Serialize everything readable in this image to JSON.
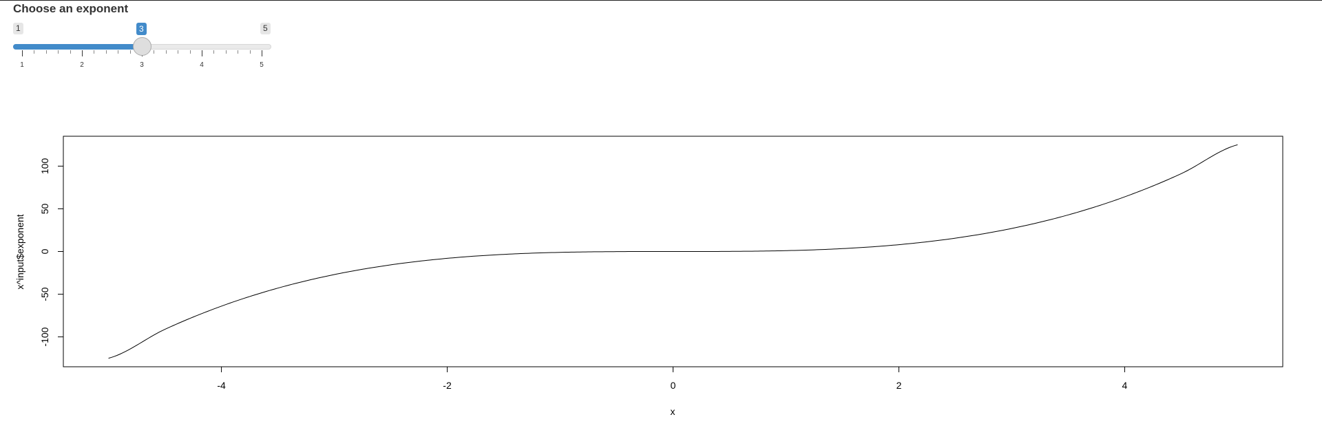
{
  "slider": {
    "label": "Choose an exponent",
    "min": 1,
    "max": 5,
    "value": 3,
    "min_label": "1",
    "max_label": "5",
    "value_label": "3",
    "tick_labels": [
      "1",
      "2",
      "3",
      "4",
      "5"
    ],
    "accent_color": "#428bca"
  },
  "chart_data": {
    "type": "line",
    "title": "",
    "xlabel": "x",
    "ylabel": "x^input$exponent",
    "xlim": [
      -5.4,
      5.4
    ],
    "ylim": [
      -135,
      135
    ],
    "xticks": [
      -4,
      -2,
      0,
      2,
      4
    ],
    "xtick_labels": [
      "-4",
      "-2",
      "0",
      "2",
      "4"
    ],
    "yticks": [
      -100,
      -50,
      0,
      50,
      100
    ],
    "ytick_labels": [
      "-100",
      "-50",
      "0",
      "50",
      "100"
    ],
    "grid": false,
    "series": [
      {
        "x": [
          -5,
          -4.5,
          -4,
          -3.5,
          -3,
          -2.5,
          -2,
          -1.5,
          -1,
          -0.5,
          0,
          0.5,
          1,
          1.5,
          2,
          2.5,
          3,
          3.5,
          4,
          4.5,
          5
        ],
        "y": [
          -125,
          -91.125,
          -64,
          -42.875,
          -27,
          -15.625,
          -8,
          -3.375,
          -1,
          -0.125,
          0,
          0.125,
          1,
          3.375,
          8,
          15.625,
          27,
          42.875,
          64,
          91.125,
          125
        ],
        "color": "#000000"
      }
    ]
  }
}
